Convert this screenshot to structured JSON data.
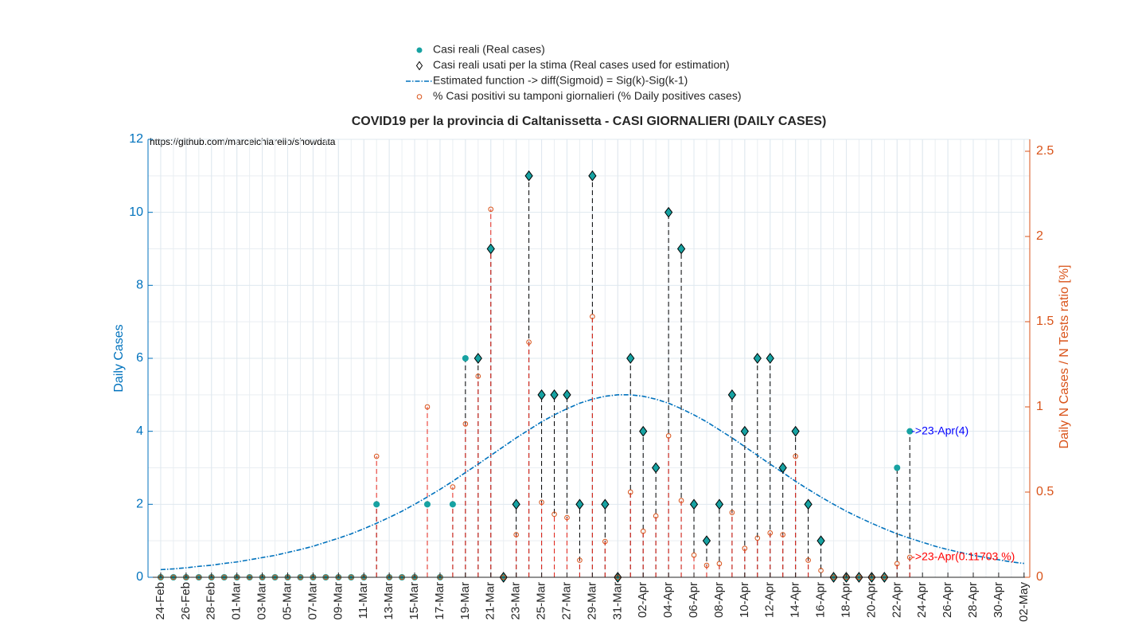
{
  "chart_data": {
    "type": "stem",
    "title": "COVID19 per la provincia di Caltanissetta - CASI GIORNALIERI (DAILY CASES)",
    "source": "https://github.com/marcelchiarello/showdata",
    "ylabel": "Daily Cases",
    "y2label": "Daily N Cases / N Tests ratio [%]",
    "categories": [
      "24-Feb",
      null,
      "26-Feb",
      null,
      "28-Feb",
      null,
      "01-Mar",
      null,
      "03-Mar",
      null,
      "05-Mar",
      null,
      "07-Mar",
      null,
      "09-Mar",
      null,
      "11-Mar",
      null,
      "13-Mar",
      null,
      "15-Mar",
      null,
      "17-Mar",
      null,
      "19-Mar",
      null,
      "21-Mar",
      null,
      "23-Mar",
      null,
      "25-Mar",
      null,
      "27-Mar",
      null,
      "29-Mar",
      null,
      "31-Mar",
      null,
      "02-Apr",
      null,
      "04-Apr",
      null,
      "06-Apr",
      null,
      "08-Apr",
      null,
      "10-Apr",
      null,
      "12-Apr",
      null,
      "14-Apr",
      null,
      "16-Apr",
      null,
      "18-Apr",
      null,
      "20-Apr",
      null,
      "22-Apr",
      null,
      "24-Apr",
      null,
      "26-Apr",
      null,
      "28-Apr",
      null,
      "30-Apr",
      null,
      "02-May"
    ],
    "series": [
      {
        "name": "Casi reali (Real cases)",
        "color": "#17a2a2",
        "marker": "circle",
        "values": [
          0,
          0,
          0,
          0,
          0,
          0,
          0,
          0,
          0,
          0,
          0,
          0,
          0,
          0,
          0,
          0,
          0,
          2,
          0,
          0,
          0,
          2,
          0,
          2,
          6,
          6,
          9,
          0,
          2,
          11,
          5,
          5,
          5,
          2,
          11,
          2,
          0,
          6,
          4,
          3,
          10,
          9,
          2,
          1,
          2,
          5,
          4,
          6,
          6,
          3,
          4,
          2,
          1,
          0,
          0,
          0,
          0,
          0,
          3,
          4,
          null,
          null,
          null,
          null,
          null,
          null,
          null,
          null,
          null
        ]
      },
      {
        "name": "Casi reali usati per la stima (Real cases used for estimation)",
        "color": "#000000",
        "marker": "diamond",
        "values": [
          null,
          null,
          null,
          null,
          null,
          null,
          null,
          null,
          null,
          null,
          null,
          null,
          null,
          null,
          null,
          null,
          null,
          null,
          null,
          null,
          null,
          null,
          null,
          null,
          null,
          6,
          9,
          0,
          2,
          11,
          5,
          5,
          5,
          2,
          11,
          2,
          0,
          6,
          4,
          3,
          10,
          9,
          2,
          1,
          2,
          5,
          4,
          6,
          6,
          3,
          4,
          2,
          1,
          0,
          0,
          0,
          0,
          0,
          null,
          null,
          null,
          null,
          null,
          null,
          null,
          null,
          null,
          null,
          null
        ]
      },
      {
        "name": "Estimated function -> diff(Sigmoid) = Sig(k)-Sig(k-1)",
        "color": "#0072bd",
        "marker": "line",
        "values": [
          0.21,
          0.23,
          0.26,
          0.3,
          0.33,
          0.38,
          0.42,
          0.48,
          0.54,
          0.6,
          0.68,
          0.76,
          0.85,
          0.96,
          1.07,
          1.19,
          1.33,
          1.48,
          1.64,
          1.81,
          2.0,
          2.2,
          2.41,
          2.63,
          2.87,
          3.1,
          3.34,
          3.58,
          3.82,
          4.04,
          4.26,
          4.45,
          4.62,
          4.77,
          4.88,
          4.96,
          5.0,
          5.0,
          4.96,
          4.88,
          4.77,
          4.62,
          4.45,
          4.26,
          4.04,
          3.82,
          3.58,
          3.34,
          3.1,
          2.87,
          2.63,
          2.41,
          2.2,
          2.0,
          1.81,
          1.64,
          1.48,
          1.33,
          1.19,
          1.07,
          0.96,
          0.85,
          0.76,
          0.68,
          0.6,
          0.54,
          0.48,
          0.42,
          0.38
        ]
      },
      {
        "name": "% Casi positivi su tamponi giornalieri (% Daily positives cases)",
        "color": "#d95319",
        "marker": "open-circle",
        "axis": "y2",
        "values": [
          0,
          0,
          0,
          0,
          0,
          0,
          0,
          0,
          0,
          0,
          0,
          0,
          0,
          0,
          0,
          0,
          0,
          0.71,
          0,
          0,
          0,
          1.0,
          0,
          0.53,
          0.9,
          1.18,
          2.16,
          0,
          0.25,
          1.38,
          0.44,
          0.37,
          0.35,
          0.1,
          1.53,
          0.21,
          0,
          0.5,
          0.27,
          0.36,
          0.83,
          0.45,
          0.13,
          0.07,
          0.08,
          0.38,
          0.17,
          0.23,
          0.26,
          0.25,
          0.71,
          0.1,
          0.04,
          0,
          0,
          0,
          0,
          0,
          0.08,
          0.11703,
          null,
          null,
          null,
          null,
          null,
          null,
          null,
          null,
          null
        ]
      }
    ],
    "annotations": [
      {
        "text": "->23-Apr(4)",
        "color": "#0000ff",
        "x": 59,
        "y": 4
      },
      {
        "text": "->23-Apr(0.11703 %)",
        "color": "#ff0000",
        "x": 59,
        "y2": 0.11703
      }
    ],
    "ylim": [
      0,
      12
    ],
    "yticks": [
      0,
      2,
      4,
      6,
      8,
      10,
      12
    ],
    "y2lim": [
      0,
      2.57
    ],
    "y2ticks": [
      0,
      0.5,
      1,
      1.5,
      2,
      2.5
    ],
    "grid": true,
    "left_axis_color": "#0072bd",
    "right_axis_color": "#d95319"
  }
}
